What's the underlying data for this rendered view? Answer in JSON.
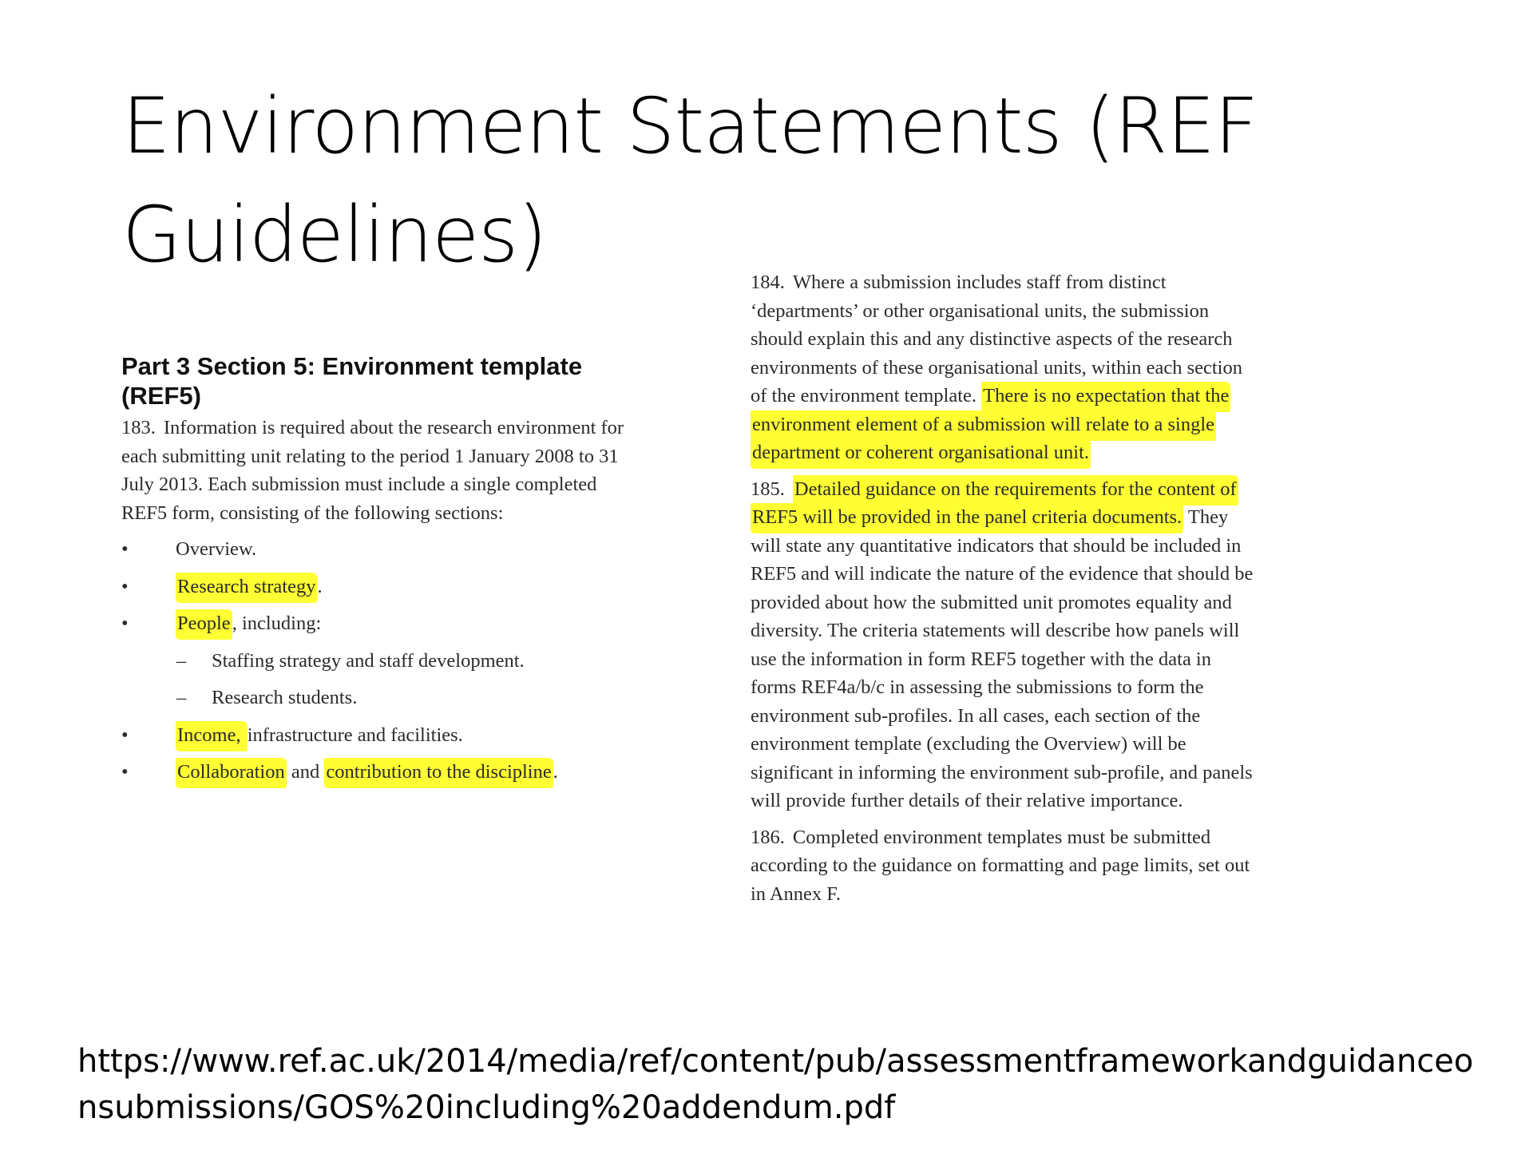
{
  "slide": {
    "title": "Environment Statements (REF Guidelines)",
    "source_url": "https://www.ref.ac.uk/2014/media/ref/content/pub/assessmentframeworkandguidanceonsubmissions/GOS%20including%20addendum.pdf"
  },
  "left_excerpt": {
    "heading": "Part 3 Section 5: Environment template (REF5)",
    "p183": {
      "num": "183.",
      "text": "Information is required about the research environment for each submitting unit relating to the period 1 January 2008 to 31 July 2013. Each submission must include a single completed REF5 form, consisting of the following sections:"
    },
    "bullet_glyph": "•",
    "dash_glyph": "–",
    "bullets": {
      "overview": "Overview.",
      "research_strategy_hl": "Research strategy",
      "research_strategy_rest": ".",
      "people_hl": "People",
      "people_rest": ", including:",
      "staffing": "Staffing strategy and staff development.",
      "students": "Research students.",
      "income_hl": "Income, ",
      "income_rest": "infrastructure and facilities.",
      "collab_hl": "Collaboration",
      "collab_mid": " and ",
      "collab_hl2": "contribution to the discipline",
      "collab_end": "."
    }
  },
  "right_excerpt": {
    "p184": {
      "num": "184.",
      "text": "Where a submission includes staff from distinct ‘departments’ or other organisational units, the submission should explain this and any distinctive aspects of the research environments of these organisational units, within each section of the environment template. ",
      "highlight": "There is no expectation that the environment element of a submission will relate to a single department or coherent organisational unit."
    },
    "p185": {
      "num": "185.",
      "highlight": "Detailed guidance on the requirements for the content of REF5 will be provided in the panel criteria documents.",
      "text": " They will state any quantitative indicators that should be included in REF5 and will indicate the nature of the evidence that should be provided about how the submitted unit promotes equality and diversity. The criteria statements will describe how panels will use the information in form REF5 together with the data in forms REF4a/b/c in assessing the submissions to form the environment sub-profiles. In all cases, each section of the environment template (excluding the Overview) will be significant in informing the environment sub-profile, and panels will provide further details of their relative importance."
    },
    "p186": {
      "num": "186.",
      "text": "Completed environment templates must be submitted according to the guidance on formatting and page limits, set out in Annex F."
    }
  },
  "colors": {
    "highlight": "#ffff33",
    "text": "#2b2b2b",
    "title": "#000000"
  }
}
